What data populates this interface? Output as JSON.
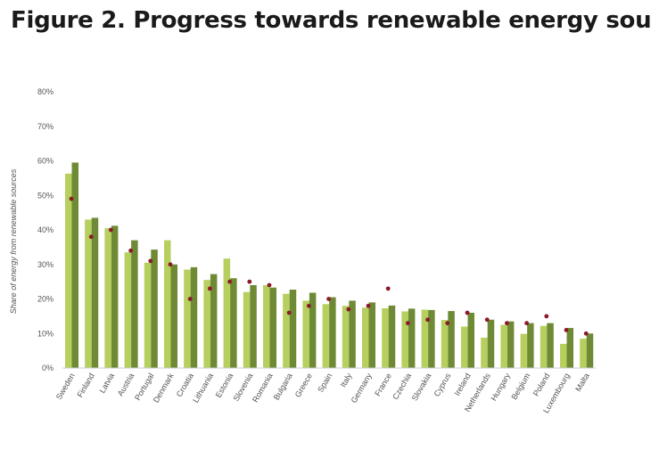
{
  "page": {
    "title": "Figure 2. Progress towards renewable energy sou"
  },
  "chart_data": {
    "type": "bar",
    "title": "Figure 2. Progress towards renewable energy sou",
    "ylabel": "Share of energy from renewable sources",
    "xlabel": "",
    "ylim": [
      0,
      80
    ],
    "yticks": [
      "0%",
      "10%",
      "20%",
      "30%",
      "40%",
      "50%",
      "60%",
      "70%",
      "80%"
    ],
    "ytick_values": [
      0,
      10,
      20,
      30,
      40,
      50,
      60,
      70,
      80
    ],
    "grid": false,
    "colors": {
      "light": "#b6cf5e",
      "dark": "#6f8a34",
      "marker": "#8b1a2b"
    },
    "categories": [
      "Sweden",
      "Finland",
      "Latvia",
      "Austria",
      "Portugal",
      "Denmark",
      "Croatia",
      "Lithuania",
      "Estonia",
      "Slovenia",
      "Romania",
      "Bulgaria",
      "Greece",
      "Spain",
      "Italy",
      "Germany",
      "France",
      "Czechia",
      "Slovakia",
      "Cyprus",
      "Ireland",
      "Netherlands",
      "Hungary",
      "Belgium",
      "Poland",
      "Luxembourg",
      "Malta"
    ],
    "series": [
      {
        "values": [
          56.3,
          43.0,
          40.5,
          33.5,
          30.5,
          37.0,
          28.5,
          25.5,
          31.7,
          22.0,
          24.0,
          21.5,
          19.5,
          18.5,
          18.0,
          17.5,
          17.3,
          16.4,
          16.9,
          13.9,
          12.0,
          8.8,
          12.5,
          9.9,
          12.2,
          7.0,
          8.5
        ]
      },
      {
        "values": [
          59.5,
          43.5,
          41.2,
          37.0,
          34.3,
          30.0,
          29.2,
          27.2,
          26.0,
          24.0,
          23.3,
          22.7,
          21.8,
          20.5,
          19.5,
          19.0,
          18.1,
          17.2,
          16.8,
          16.5,
          16.0,
          14.0,
          13.5,
          13.0,
          13.0,
          11.6,
          10.0
        ]
      },
      {
        "values": [
          49,
          38,
          40,
          34,
          31,
          30,
          20,
          23,
          25,
          25,
          24,
          16,
          18,
          20,
          17,
          18,
          23,
          13,
          14,
          13,
          16,
          14,
          13,
          13,
          15,
          11,
          10
        ]
      }
    ]
  }
}
